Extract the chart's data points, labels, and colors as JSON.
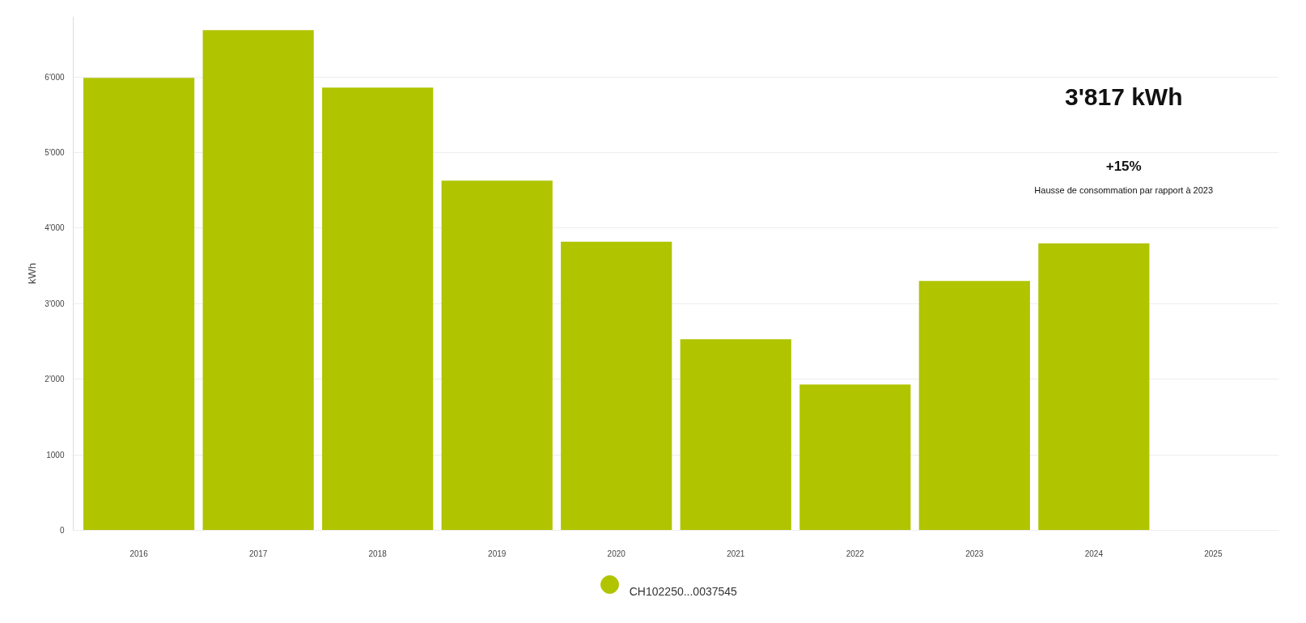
{
  "chart_data": {
    "type": "bar",
    "ylabel": "kWh",
    "categories": [
      "2016",
      "2017",
      "2018",
      "2019",
      "2020",
      "2021",
      "2022",
      "2023",
      "2024",
      "2025"
    ],
    "series": [
      {
        "name": "CH102250...0037545",
        "color": "#b0c400",
        "values": [
          5990,
          6620,
          5860,
          4630,
          3820,
          2530,
          1930,
          3300,
          3800,
          null
        ]
      }
    ],
    "ylim": [
      0,
      6800
    ],
    "yticks": [
      0,
      {
        "value": 1000,
        "label": "1000"
      },
      {
        "value": 2000,
        "label": "2'000"
      },
      {
        "value": 3000,
        "label": "3'000"
      },
      {
        "value": 4000,
        "label": "4'000"
      },
      {
        "value": 5000,
        "label": "5'000"
      },
      {
        "value": 6000,
        "label": "6'000"
      }
    ],
    "grid": "y",
    "legend": "bottom",
    "marker": "circle",
    "annotations": [
      "3'817 kWh",
      "+15%",
      "Hausse de consommation par rapport à 2023"
    ]
  }
}
